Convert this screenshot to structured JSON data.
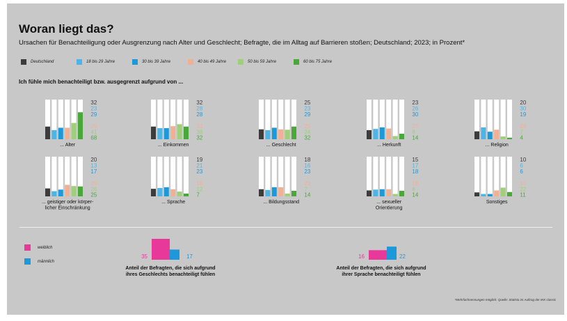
{
  "title": "Woran liegt das?",
  "subtitle": "Ursachen für Benachteiligung oder Ausgrenzung nach Alter und Geschlecht; Befragte, die im Alltag auf Barrieren stoßen; Deutschland; 2023; in Prozent*",
  "section_heading": "Ich fühle mich benachteiligt bzw. ausgegrenzt aufgrund von ...",
  "colors": {
    "canvas_bg": "#c8c8c8",
    "bar_bg": "#ffffff",
    "deutschland": "#3c3c3c",
    "age_18_29": "#4cb5e6",
    "age_30_39": "#1d98d8",
    "age_40_49": "#f0b094",
    "age_50_59": "#9fcf79",
    "age_60_75": "#4aa83a",
    "weiblich": "#e8389a",
    "maennlich": "#1d98d8"
  },
  "legend": [
    {
      "label": "Deutschland",
      "color": "#3c3c3c"
    },
    {
      "label": "18 bis 29 Jahre",
      "color": "#4cb5e6"
    },
    {
      "label": "30 bis 39 Jahre",
      "color": "#1d98d8"
    },
    {
      "label": "40 bis 49 Jahre",
      "color": "#f0b094"
    },
    {
      "label": "50 bis 59 Jahre",
      "color": "#9fcf79"
    },
    {
      "label": "60 bis 75 Jahre",
      "color": "#4aa83a"
    }
  ],
  "chart_data": [
    {
      "type": "bar",
      "series_names": [
        "Deutschland",
        "18 bis 29 Jahre",
        "30 bis 39 Jahre",
        "40 bis 49 Jahre",
        "50 bis 59 Jahre",
        "60 bis 75 Jahre"
      ],
      "ylim": [
        0,
        100
      ],
      "panels": [
        {
          "label": "... Alter",
          "values": [
            32,
            23,
            29,
            29,
            41,
            68
          ]
        },
        {
          "label": "... Einkommen",
          "values": [
            32,
            28,
            28,
            33,
            38,
            32
          ]
        },
        {
          "label": "... Geschlecht",
          "values": [
            25,
            23,
            29,
            25,
            24,
            32
          ]
        },
        {
          "label": "... Herkunft",
          "values": [
            23,
            26,
            30,
            27,
            8,
            14
          ]
        },
        {
          "label": "... Religion",
          "values": [
            20,
            30,
            19,
            24,
            7,
            4
          ]
        },
        {
          "label": "... geistiger oder körper-\nlicher Einschränkung",
          "values": [
            20,
            13,
            17,
            29,
            26,
            25
          ]
        },
        {
          "label": "... Sprache",
          "values": [
            19,
            21,
            23,
            18,
            12,
            7
          ]
        },
        {
          "label": "... Bildungsstand",
          "values": [
            18,
            16,
            23,
            23,
            7,
            14
          ]
        },
        {
          "label": "... sexueller\nOrientierung",
          "values": [
            15,
            17,
            18,
            18,
            6,
            14
          ]
        },
        {
          "label": "Sonstiges",
          "values": [
            10,
            6,
            6,
            15,
            22,
            11
          ]
        }
      ]
    },
    {
      "type": "bar",
      "caption": "Anteil der Befragten, die sich aufgrund\nihres Geschlechts benachteiligt fühlen",
      "categories": [
        "weiblich",
        "männlich"
      ],
      "values": [
        35,
        17
      ]
    },
    {
      "type": "bar",
      "caption": "Anteil der Befragten, die sich aufgrund\nihrer Sprache benachteiligt fühlen",
      "categories": [
        "weiblich",
        "männlich"
      ],
      "values": [
        16,
        22
      ]
    }
  ],
  "gender_legend": [
    {
      "label": "weiblich",
      "color": "#e8389a"
    },
    {
      "label": "männlich",
      "color": "#1d98d8"
    }
  ],
  "footnote": "*Mehrfachnennungen möglich. Quelle: Statista im Auftrag der IKK classic"
}
